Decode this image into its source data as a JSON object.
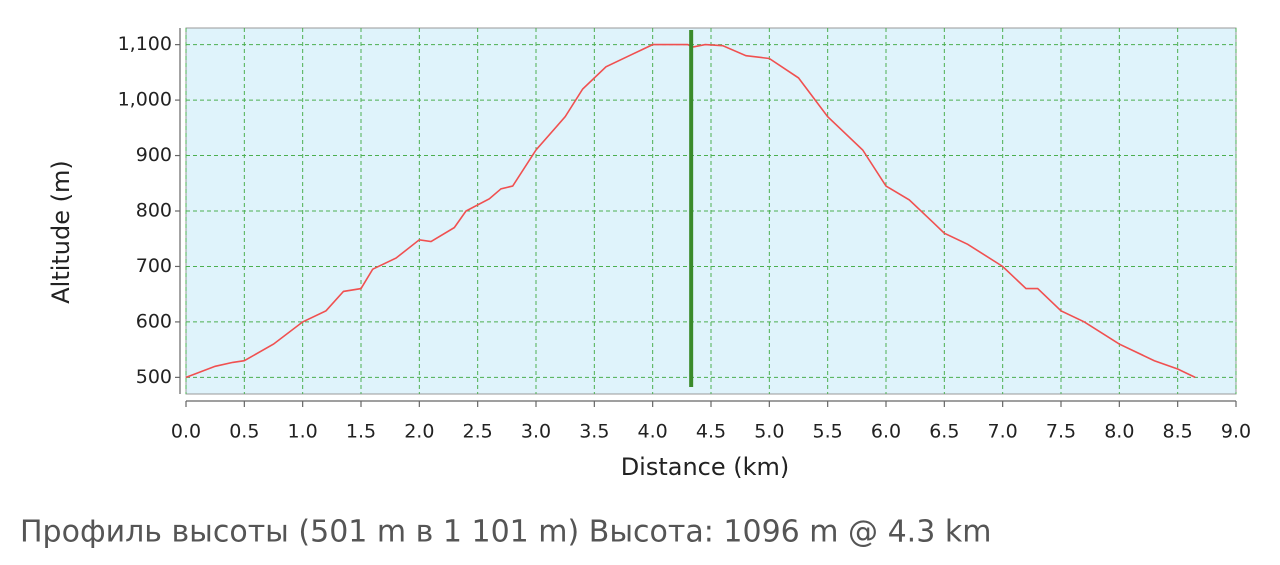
{
  "chart_data": {
    "type": "line",
    "x_label": "Distance (km)",
    "y_label": "Altitude (m)",
    "caption": "Профиль высоты (501 m в 1 101 m) Высота: 1096 m @ 4.3 km",
    "x": [
      0.0,
      0.25,
      0.4,
      0.5,
      0.75,
      1.0,
      1.2,
      1.35,
      1.5,
      1.6,
      1.8,
      2.0,
      2.1,
      2.3,
      2.4,
      2.6,
      2.7,
      2.8,
      3.0,
      3.25,
      3.4,
      3.6,
      3.8,
      4.0,
      4.3,
      4.35,
      4.45,
      4.6,
      4.8,
      5.0,
      5.25,
      5.5,
      5.8,
      6.0,
      6.2,
      6.4,
      6.5,
      6.7,
      7.0,
      7.2,
      7.3,
      7.5,
      7.7,
      8.0,
      8.3,
      8.5,
      8.65
    ],
    "series": [
      {
        "name": "Altitude",
        "color": "#f05050",
        "values": [
          500,
          520,
          527,
          530,
          560,
          600,
          620,
          655,
          660,
          695,
          715,
          748,
          745,
          770,
          800,
          822,
          840,
          845,
          910,
          970,
          1020,
          1060,
          1080,
          1100,
          1100,
          1096,
          1100,
          1098,
          1080,
          1075,
          1040,
          970,
          910,
          845,
          820,
          780,
          760,
          740,
          700,
          660,
          660,
          620,
          600,
          560,
          530,
          515,
          500
        ]
      }
    ],
    "cursor": {
      "x": 4.33,
      "color": "#3a8a2a"
    },
    "background": "#dff3fb",
    "grid": true,
    "xlim": [
      0,
      9
    ],
    "ylim": [
      470,
      1130
    ],
    "xticks": [
      {
        "value": 0,
        "label": "0.0"
      },
      0.5,
      {
        "value": 1,
        "label": "1.0"
      },
      1.5,
      {
        "value": 2,
        "label": "2.0"
      },
      2.5,
      {
        "value": 3,
        "label": "3.0"
      },
      3.5,
      {
        "value": 4,
        "label": "4.0"
      },
      4.5,
      {
        "value": 5,
        "label": "5.0"
      },
      5.5,
      {
        "value": 6,
        "label": "6.0"
      },
      6.5,
      {
        "value": 7,
        "label": "7.0"
      },
      7.5,
      {
        "value": 8,
        "label": "8.0"
      },
      8.5,
      {
        "value": 9,
        "label": "9.0"
      }
    ],
    "yticks": [
      500,
      600,
      700,
      800,
      900,
      {
        "value": 1000,
        "label": "1,000"
      },
      {
        "value": 1100,
        "label": "1,100"
      }
    ]
  }
}
